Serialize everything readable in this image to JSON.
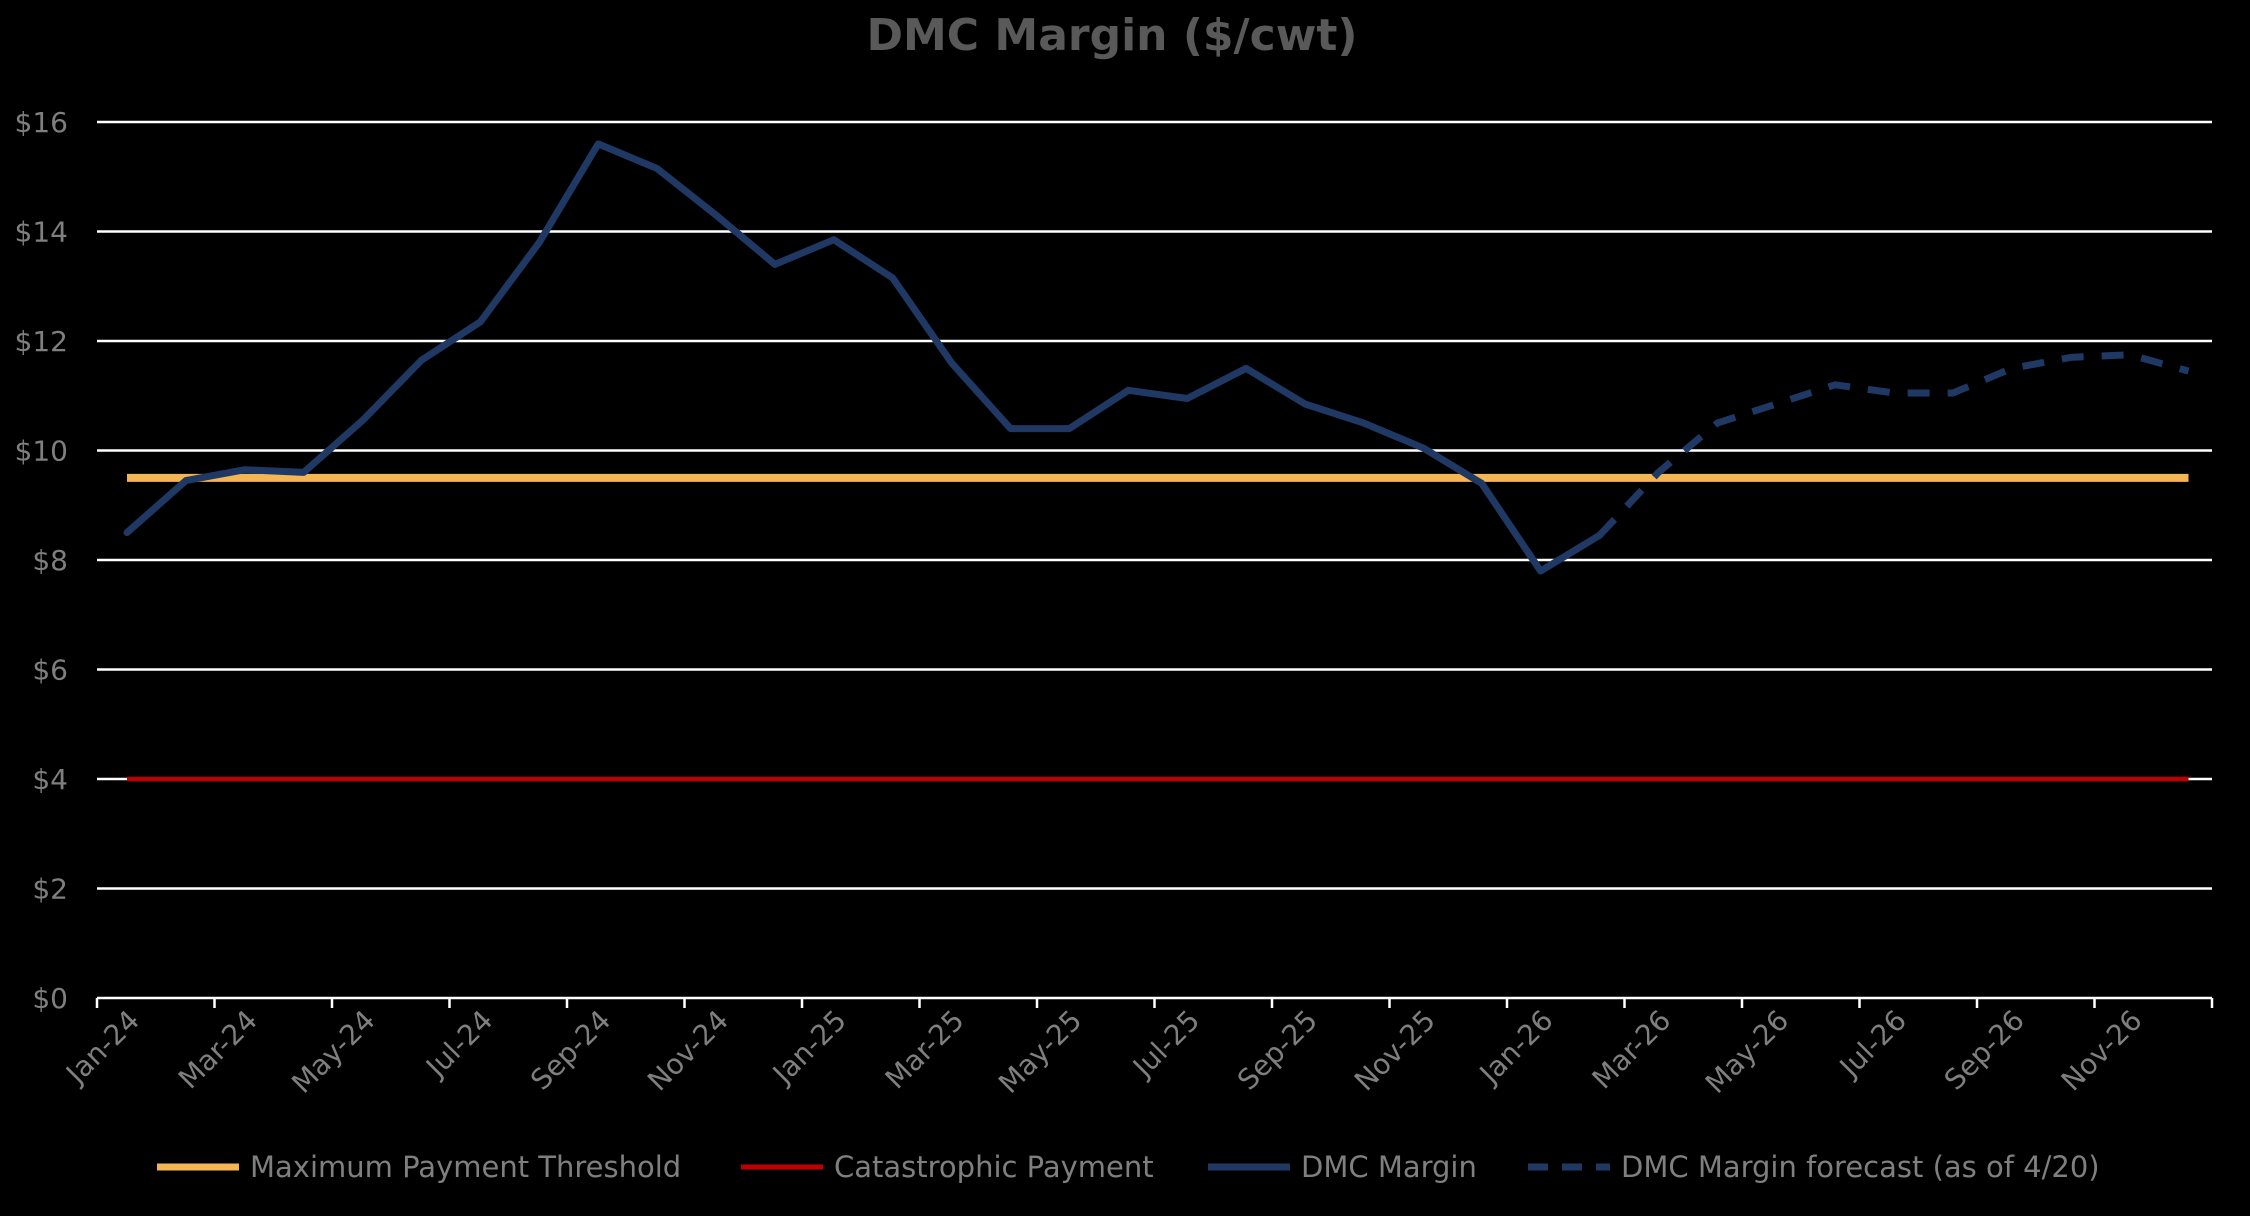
{
  "chart_data": {
    "type": "line",
    "title": "DMC Margin ($/cwt)",
    "xlabel": "",
    "ylabel": "",
    "ylim": [
      0,
      16
    ],
    "yticks": [
      0,
      2,
      4,
      6,
      8,
      10,
      12,
      14,
      16
    ],
    "ytick_labels": [
      "$0",
      "$2",
      "$4",
      "$6",
      "$8",
      "$10",
      "$12",
      "$14",
      "$16"
    ],
    "grid": true,
    "legend_position": "bottom",
    "x_tick_labels": [
      "Jan-24",
      "Mar-24",
      "May-24",
      "Jul-24",
      "Sep-24",
      "Nov-24",
      "Jan-25",
      "Mar-25",
      "May-25",
      "Jul-25",
      "Sep-25",
      "Nov-25",
      "Jan-26",
      "Mar-26",
      "May-26",
      "Jul-26",
      "Sep-26",
      "Nov-26"
    ],
    "categories": [
      "Jan-24",
      "Feb-24",
      "Mar-24",
      "Apr-24",
      "May-24",
      "Jun-24",
      "Jul-24",
      "Aug-24",
      "Sep-24",
      "Oct-24",
      "Nov-24",
      "Dec-24",
      "Jan-25",
      "Feb-25",
      "Mar-25",
      "Apr-25",
      "May-25",
      "Jun-25",
      "Jul-25",
      "Aug-25",
      "Sep-25",
      "Oct-25",
      "Nov-25",
      "Dec-25",
      "Jan-26",
      "Feb-26",
      "Mar-26",
      "Apr-26",
      "May-26",
      "Jun-26",
      "Jul-26",
      "Aug-26",
      "Sep-26",
      "Oct-26",
      "Nov-26",
      "Dec-26"
    ],
    "series": [
      {
        "name": "Maximum Payment Threshold",
        "color": "#F4B553",
        "style": "solid",
        "constant": 9.5
      },
      {
        "name": "Catastrophic Payment",
        "color": "#C00000",
        "style": "solid",
        "constant": 4.0
      },
      {
        "name": "DMC Margin",
        "color": "#203864",
        "style": "solid",
        "values": [
          8.5,
          9.45,
          9.65,
          9.6,
          10.55,
          11.65,
          12.35,
          13.8,
          15.6,
          15.15,
          14.3,
          13.4,
          13.85,
          13.15,
          11.6,
          10.4,
          10.4,
          11.1,
          10.95,
          11.5,
          10.85,
          10.5,
          10.05,
          9.4,
          7.8,
          8.45,
          null,
          null,
          null,
          null,
          null,
          null,
          null,
          null,
          null,
          null
        ]
      },
      {
        "name": "DMC Margin forecast (as of 4/20)",
        "color": "#203864",
        "style": "dashed",
        "values": [
          null,
          null,
          null,
          null,
          null,
          null,
          null,
          null,
          null,
          null,
          null,
          null,
          null,
          null,
          null,
          null,
          null,
          null,
          null,
          null,
          null,
          null,
          null,
          null,
          null,
          8.45,
          9.6,
          10.5,
          10.85,
          11.2,
          11.05,
          11.05,
          11.5,
          11.7,
          11.75,
          11.45
        ]
      }
    ]
  }
}
